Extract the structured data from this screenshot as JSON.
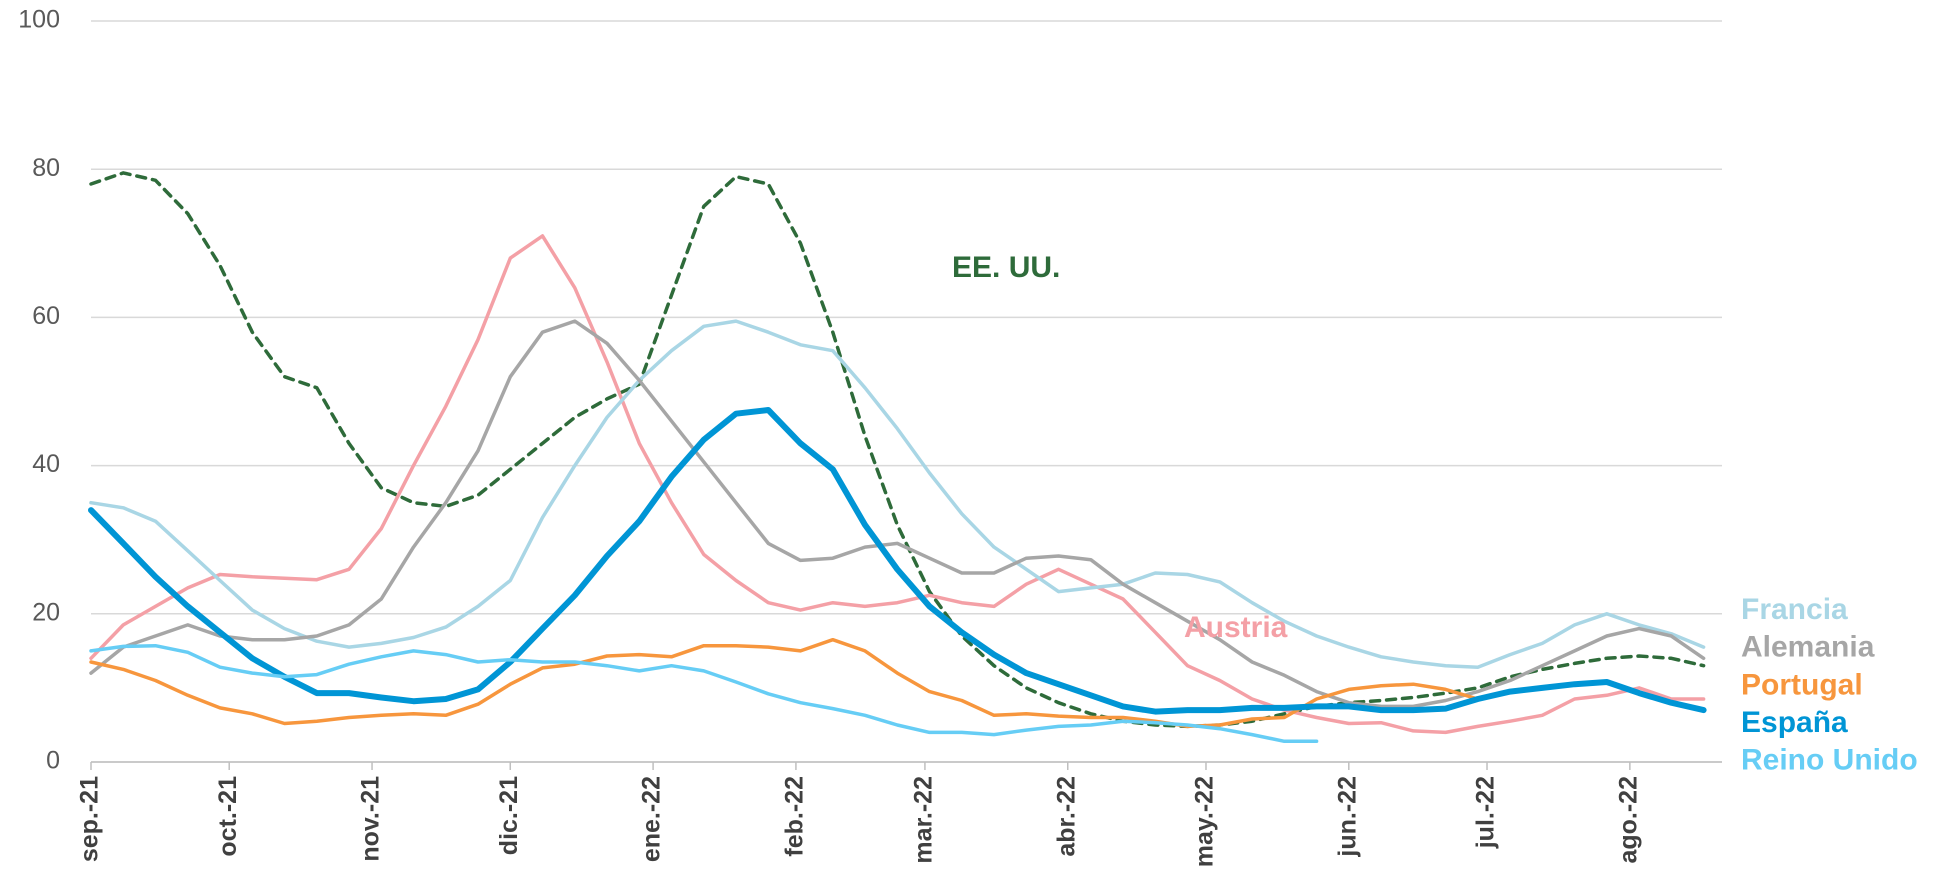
{
  "chart_data": {
    "type": "line",
    "x": [
      0,
      7,
      14,
      21,
      28,
      35,
      42,
      49,
      56,
      63,
      70,
      77,
      84,
      91,
      98,
      105,
      112,
      119,
      126,
      133,
      140,
      147,
      154,
      161,
      168,
      175,
      182,
      189,
      196,
      203,
      210,
      217,
      224,
      231,
      238,
      245,
      252,
      259,
      266,
      273,
      280,
      287,
      294,
      301,
      308,
      315,
      322,
      329,
      336,
      343,
      350
    ],
    "xlim": [
      0,
      354
    ],
    "xticks": [
      {
        "value": 0,
        "label": "sep.-21"
      },
      {
        "value": 30,
        "label": "oct.-21"
      },
      {
        "value": 61,
        "label": "nov.-21"
      },
      {
        "value": 91,
        "label": "dic.-21"
      },
      {
        "value": 122,
        "label": "ene.-22"
      },
      {
        "value": 153,
        "label": "feb.-22"
      },
      {
        "value": 181,
        "label": "mar.-22"
      },
      {
        "value": 212,
        "label": "abr.-22"
      },
      {
        "value": 242,
        "label": "may.-22"
      },
      {
        "value": 273,
        "label": "jun.-22"
      },
      {
        "value": 303,
        "label": "jul.-22"
      },
      {
        "value": 334,
        "label": "ago.-22"
      }
    ],
    "ylim": [
      0,
      100
    ],
    "yticks": [
      0,
      20,
      40,
      60,
      80,
      100
    ],
    "grid": true,
    "series": [
      {
        "name": "EE. UU.",
        "color": "#2e6b3a",
        "line_style": "dashed",
        "values": [
          78,
          79.5,
          78.5,
          74,
          67,
          58,
          52,
          50.5,
          43,
          37,
          35,
          34.5,
          36,
          39.5,
          43,
          46.5,
          49,
          51,
          63,
          75,
          79,
          78,
          70,
          58,
          44,
          32,
          23,
          17,
          13,
          10,
          8,
          6.5,
          5.5,
          5,
          4.8,
          5,
          5.5,
          6.5,
          7.5,
          8,
          8.3,
          8.7,
          9.3,
          10,
          11.5,
          12.5,
          13.3,
          14,
          14.3,
          14,
          13
        ]
      },
      {
        "name": "Austria",
        "color": "#f4a0a6",
        "values": [
          14,
          18.5,
          21,
          23.5,
          25.3,
          25,
          24.8,
          24.6,
          26,
          31.5,
          40,
          48,
          57,
          68,
          71,
          64,
          54,
          43,
          35,
          28,
          24.5,
          21.5,
          20.5,
          21.5,
          21,
          21.5,
          22.5,
          21.5,
          21,
          24,
          26,
          24,
          22,
          17.5,
          13,
          11,
          8.5,
          7,
          6,
          5.2,
          5.3,
          4.2,
          4,
          4.8,
          5.5,
          6.3,
          8.5,
          9,
          10,
          8.5,
          8.5
        ]
      },
      {
        "name": "Francia",
        "color": "#a9d6e5",
        "values": [
          35,
          34.3,
          32.5,
          28.5,
          24.5,
          20.5,
          18,
          16.3,
          15.5,
          16,
          16.8,
          18.2,
          21,
          24.5,
          33,
          40,
          46.5,
          51.5,
          55.5,
          58.8,
          59.5,
          58,
          56.3,
          55.5,
          50.5,
          45,
          39,
          33.5,
          29,
          26,
          23,
          23.5,
          24,
          25.5,
          25.3,
          24.3,
          21.5,
          19,
          17,
          15.5,
          14.2,
          13.5,
          13,
          12.8,
          14.5,
          16,
          18.5,
          20,
          18.5,
          17.3,
          15.5
        ]
      },
      {
        "name": "Alemania",
        "color": "#a6a6a6",
        "values": [
          12,
          15.5,
          17,
          18.5,
          17,
          16.5,
          16.5,
          17,
          18.5,
          22,
          29,
          35,
          42,
          52,
          58,
          59.5,
          56.5,
          51.5,
          46,
          40.5,
          35,
          29.5,
          27.2,
          27.5,
          29,
          29.5,
          27.5,
          25.5,
          25.5,
          27.5,
          27.8,
          27.3,
          24,
          21.5,
          19,
          16.5,
          13.5,
          11.7,
          9.5,
          8,
          7.5,
          7.5,
          8.3,
          9.5,
          11,
          13,
          15,
          17,
          18,
          17,
          14
        ]
      },
      {
        "name": "Portugal",
        "color": "#f7963d",
        "values": [
          13.5,
          12.5,
          11,
          9,
          7.3,
          6.5,
          5.2,
          5.5,
          6,
          6.3,
          6.5,
          6.3,
          7.8,
          10.5,
          12.7,
          13.2,
          14.3,
          14.5,
          14.2,
          15.7,
          15.7,
          15.5,
          15,
          16.5,
          15,
          12,
          9.5,
          8.3,
          6.3,
          6.5,
          6.2,
          6,
          6,
          5.5,
          4.8,
          5,
          5.8,
          6,
          8.5,
          9.8,
          10.3,
          10.5,
          9.8,
          8.5,
          null,
          null,
          null,
          null,
          null,
          null,
          null
        ]
      },
      {
        "name": "España",
        "color": "#0095d5",
        "line_width": "thick",
        "values": [
          34,
          29.5,
          25,
          21,
          17.5,
          14,
          11.5,
          9.3,
          9.3,
          8.7,
          8.2,
          8.5,
          9.8,
          13.5,
          18,
          22.5,
          27.8,
          32.5,
          38.5,
          43.5,
          47,
          47.5,
          43,
          39.5,
          32,
          26,
          21,
          17.5,
          14.5,
          12,
          10.5,
          9,
          7.5,
          6.8,
          7,
          7,
          7.3,
          7.3,
          7.5,
          7.5,
          7,
          7,
          7.2,
          8.5,
          9.5,
          10,
          10.5,
          10.8,
          9.3,
          8,
          7
        ]
      },
      {
        "name": "Reino Unido",
        "color": "#66cdf5",
        "values": [
          15,
          15.6,
          15.7,
          14.8,
          12.8,
          12,
          11.5,
          11.8,
          13.2,
          14.2,
          15,
          14.5,
          13.5,
          13.8,
          13.5,
          13.5,
          13,
          12.3,
          13,
          12.3,
          10.8,
          9.2,
          8,
          7.2,
          6.3,
          5,
          4,
          4,
          3.7,
          4.3,
          4.8,
          5,
          5.5,
          5.3,
          5,
          4.5,
          3.7,
          2.8,
          2.8,
          null,
          null,
          null,
          null,
          null,
          null,
          null,
          null,
          null,
          null,
          null,
          null
        ]
      }
    ]
  }
}
